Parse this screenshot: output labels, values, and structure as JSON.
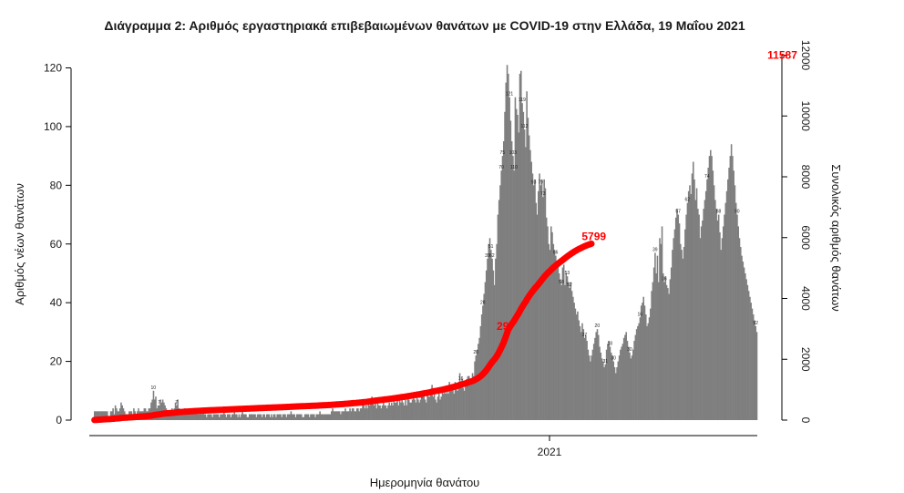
{
  "chart_data": {
    "type": "bar",
    "title": "Διάγραμμα 2: Αριθμός εργαστηριακά επιβεβαιωμένων θανάτων με COVID-19 στην Ελλάδα, 19 Μαΐου 2021",
    "xlabel": "Ημερομηνία θανάτου",
    "ylabel": "Αριθμός νέων θανάτων",
    "y2label": "Συνολικός αριθμός θανάτων",
    "x_ticks": [
      "2021"
    ],
    "y_ticks": [
      0,
      20,
      40,
      60,
      80,
      100,
      120
    ],
    "y2_ticks": [
      0,
      2000,
      4000,
      6000,
      8000,
      10000,
      12000
    ],
    "ylim": [
      0,
      125
    ],
    "y2lim": [
      0,
      12500
    ],
    "bar_color": "#7f7f7f",
    "line_color": "#ff0000",
    "grid": false,
    "series": [
      {
        "type": "bar",
        "axis": "left",
        "values": [
          3,
          3,
          3,
          3,
          3,
          3,
          3,
          3,
          3,
          3,
          3,
          3,
          1,
          1,
          3,
          3,
          4,
          2,
          5,
          4,
          3,
          3,
          4,
          6,
          5,
          4,
          3,
          2,
          2,
          2,
          3,
          3,
          3,
          2,
          4,
          3,
          2,
          3,
          4,
          3,
          3,
          3,
          3,
          4,
          4,
          3,
          3,
          4,
          4,
          6,
          7,
          10,
          7,
          8,
          4,
          5,
          5,
          7,
          6,
          7,
          6,
          5,
          4,
          3,
          3,
          3,
          3,
          4,
          3,
          4,
          6,
          5,
          7,
          4,
          3,
          3,
          2,
          3,
          4,
          3,
          3,
          2,
          3,
          2,
          3,
          2,
          3,
          2,
          3,
          2,
          2,
          2,
          3,
          2,
          3,
          2,
          2,
          1,
          2,
          2,
          2,
          2,
          1,
          2,
          2,
          2,
          2,
          2,
          1,
          2,
          2,
          2,
          3,
          2,
          1,
          2,
          2,
          2,
          1,
          2,
          2,
          3,
          2,
          2,
          1,
          2,
          1,
          2,
          3,
          2,
          2,
          2,
          1,
          1,
          2,
          2,
          2,
          2,
          2,
          2,
          1,
          2,
          2,
          2,
          2,
          1,
          2,
          2,
          1,
          2,
          2,
          2,
          1,
          2,
          1,
          2,
          2,
          1,
          2,
          2,
          2,
          2,
          1,
          2,
          2,
          2,
          1,
          2,
          2,
          2,
          3,
          2,
          2,
          2,
          1,
          2,
          2,
          2,
          2,
          2,
          1,
          1,
          2,
          2,
          2,
          2,
          1,
          2,
          2,
          2,
          2,
          1,
          2,
          2,
          2,
          3,
          2,
          2,
          2,
          2,
          2,
          2,
          2,
          2,
          2,
          3,
          4,
          3,
          3,
          3,
          3,
          3,
          3,
          2,
          3,
          3,
          3,
          4,
          3,
          3,
          3,
          4,
          3,
          4,
          4,
          3,
          3,
          4,
          4,
          3,
          4,
          4,
          5,
          5,
          4,
          5,
          4,
          6,
          5,
          6,
          8,
          7,
          5,
          6,
          4,
          6,
          5,
          5,
          4,
          5,
          6,
          5,
          5,
          4,
          5,
          6,
          5,
          6,
          5,
          7,
          6,
          6,
          7,
          5,
          7,
          6,
          7,
          6,
          5,
          7,
          5,
          8,
          7,
          6,
          6,
          7,
          9,
          7,
          6,
          8,
          7,
          6,
          7,
          8,
          8,
          10,
          7,
          6,
          9,
          8,
          8,
          10,
          12,
          8,
          9,
          7,
          6,
          8,
          9,
          7,
          8,
          10,
          9,
          11,
          9,
          10,
          9,
          13,
          10,
          12,
          11,
          9,
          13,
          12,
          10,
          13,
          16,
          13,
          14,
          11,
          10,
          12,
          14,
          15,
          15,
          12,
          14,
          16,
          15,
          20,
          22,
          24,
          26,
          28,
          32,
          36,
          39,
          43,
          47,
          51,
          55,
          60,
          62,
          58,
          55,
          51,
          46,
          55,
          60,
          70,
          75,
          80,
          85,
          90,
          95,
          105,
          115,
          121,
          118,
          110,
          102,
          95,
          90,
          85,
          110,
          106,
          104,
          98,
          118,
          119,
          108,
          105,
          99,
          93,
          112,
          103,
          97,
          92,
          88,
          84,
          80,
          82,
          74,
          70,
          78,
          84,
          80,
          82,
          76,
          82,
          79,
          69,
          66,
          60,
          58,
          66,
          64,
          60,
          58,
          56,
          54,
          52,
          50,
          48,
          46,
          52,
          53,
          46,
          50,
          49,
          47,
          45,
          47,
          44,
          42,
          40,
          38,
          36,
          37,
          34,
          32,
          30,
          33,
          31,
          28,
          29,
          27,
          24,
          22,
          20,
          22,
          24,
          26,
          28,
          30,
          31,
          29,
          25,
          23,
          21,
          20,
          18,
          19,
          24,
          26,
          27,
          25,
          23,
          22,
          20,
          18,
          16,
          18,
          20,
          22,
          24,
          25,
          26,
          28,
          29,
          30,
          27,
          25,
          23,
          21,
          22,
          24,
          27,
          29,
          31,
          32,
          33,
          35,
          39,
          40,
          42,
          39,
          36,
          32,
          33,
          35,
          38,
          44,
          47,
          52,
          57,
          50,
          56,
          47,
          62,
          60,
          66,
          50,
          47,
          49,
          46,
          45,
          43,
          48,
          52,
          58,
          62,
          65,
          69,
          72,
          70,
          67,
          60,
          58,
          55,
          59,
          65,
          70,
          74,
          78,
          80,
          77,
          84,
          88,
          82,
          75,
          79,
          72,
          70,
          62,
          66,
          68,
          72,
          75,
          78,
          82,
          86,
          90,
          92,
          90,
          85,
          80,
          75,
          72,
          68,
          70,
          64,
          58,
          62,
          66,
          70,
          74,
          78,
          82,
          86,
          90,
          94,
          90,
          85,
          80,
          74,
          70,
          66,
          62,
          59,
          56,
          54,
          52,
          50,
          48,
          46,
          44,
          42,
          40,
          38,
          36,
          34,
          32,
          30
        ]
      },
      {
        "type": "line",
        "axis": "right",
        "name": "Συνολικός αριθμός θανάτων",
        "values": []
      }
    ],
    "annotations": [
      {
        "text": "297",
        "x_index": 358,
        "y2": 2970
      },
      {
        "text": "5799",
        "x_index": 430,
        "y2": 5799
      },
      {
        "text": "11587",
        "x_index": 597,
        "y2": 11587
      }
    ],
    "bar_labels": [
      {
        "i": 51,
        "text": "10"
      },
      {
        "i": 56,
        "text": "7"
      },
      {
        "i": 71,
        "text": "7"
      },
      {
        "i": 232,
        "text": "8"
      },
      {
        "i": 282,
        "text": "12"
      },
      {
        "i": 317,
        "text": "16"
      },
      {
        "i": 330,
        "text": "20"
      },
      {
        "i": 336,
        "text": "28"
      },
      {
        "i": 340,
        "text": "39"
      },
      {
        "i": 343,
        "text": "51"
      },
      {
        "i": 344,
        "text": "62"
      },
      {
        "i": 352,
        "text": "70"
      },
      {
        "i": 353,
        "text": "75"
      },
      {
        "i": 359,
        "text": "121"
      },
      {
        "i": 362,
        "text": "103"
      },
      {
        "i": 363,
        "text": "110"
      },
      {
        "i": 370,
        "text": "119"
      },
      {
        "i": 372,
        "text": "112"
      },
      {
        "i": 380,
        "text": "93"
      },
      {
        "i": 386,
        "text": "79"
      },
      {
        "i": 388,
        "text": "73"
      },
      {
        "i": 399,
        "text": "66"
      },
      {
        "i": 404,
        "text": "58"
      },
      {
        "i": 409,
        "text": "53"
      },
      {
        "i": 411,
        "text": "52"
      },
      {
        "i": 424,
        "text": "37"
      },
      {
        "i": 435,
        "text": "20"
      },
      {
        "i": 442,
        "text": "31"
      },
      {
        "i": 446,
        "text": "18"
      },
      {
        "i": 449,
        "text": "30"
      },
      {
        "i": 463,
        "text": "30"
      },
      {
        "i": 472,
        "text": "16"
      },
      {
        "i": 485,
        "text": "39"
      },
      {
        "i": 493,
        "text": "36"
      },
      {
        "i": 505,
        "text": "57"
      },
      {
        "i": 513,
        "text": "62"
      },
      {
        "i": 530,
        "text": "74"
      },
      {
        "i": 540,
        "text": "88"
      },
      {
        "i": 556,
        "text": "90"
      },
      {
        "i": 572,
        "text": "92"
      },
      {
        "i": 575,
        "text": "79"
      },
      {
        "i": 586,
        "text": "59"
      },
      {
        "i": 592,
        "text": "45"
      },
      {
        "i": 596,
        "text": "40"
      },
      {
        "i": 598,
        "text": "30"
      }
    ]
  }
}
